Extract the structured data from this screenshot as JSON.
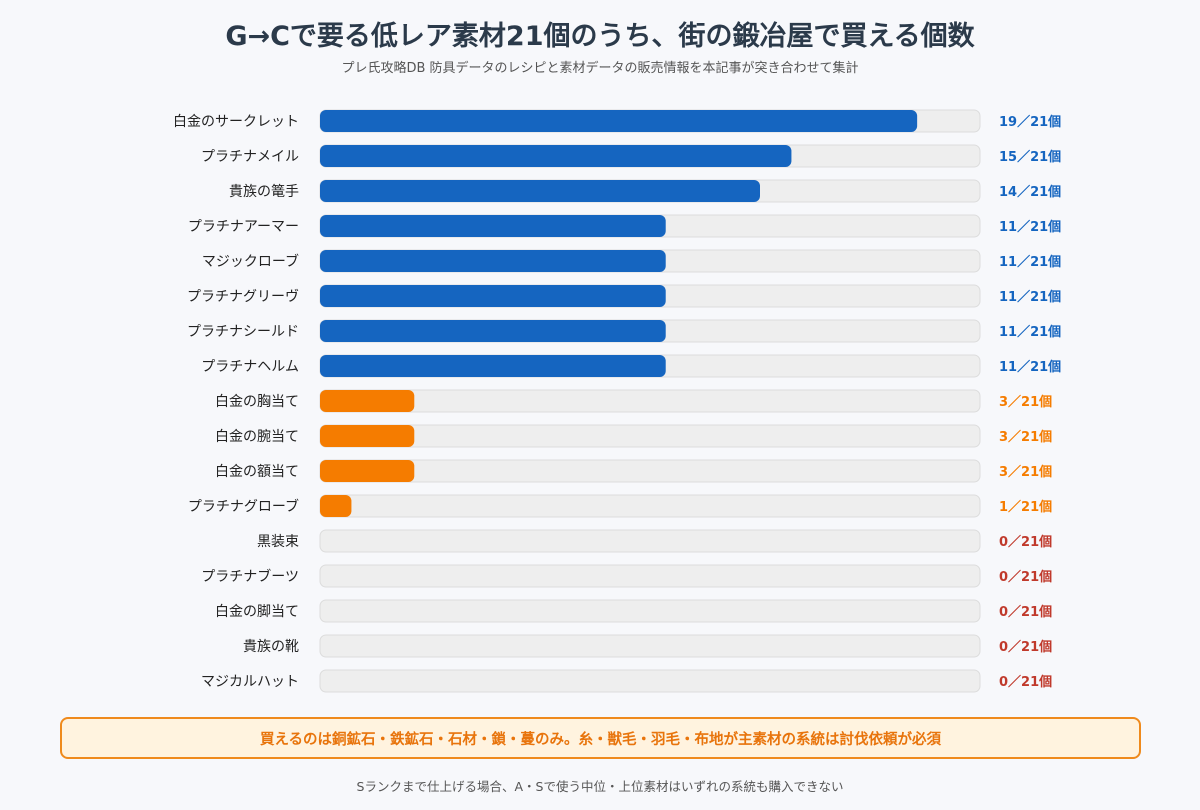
{
  "header": {
    "title": "G→Cで要る低レア素材21個のうち、街の鍛冶屋で買える個数",
    "subtitle": "プレ氏攻略DB 防具データのレシピと素材データの販売情報を本記事が突き合わせて集計"
  },
  "chart_data": {
    "type": "bar",
    "orientation": "horizontal",
    "max": 21,
    "unit_suffix": "／21個",
    "categories": [
      "白金のサークレット",
      "プラチナメイル",
      "貴族の篭手",
      "プラチナアーマー",
      "マジックローブ",
      "プラチナグリーヴ",
      "プラチナシールド",
      "プラチナヘルム",
      "白金の胸当て",
      "白金の腕当て",
      "白金の額当て",
      "プラチナグローブ",
      "黒装束",
      "プラチナブーツ",
      "白金の脚当て",
      "貴族の靴",
      "マジカルハット"
    ],
    "values": [
      19,
      15,
      14,
      11,
      11,
      11,
      11,
      11,
      3,
      3,
      3,
      1,
      0,
      0,
      0,
      0,
      0
    ],
    "value_labels": [
      "19／21個",
      "15／21個",
      "14／21個",
      "11／21個",
      "11／21個",
      "11／21個",
      "11／21個",
      "11／21個",
      "3／21個",
      "3／21個",
      "3／21個",
      "1／21個",
      "0／21個",
      "0／21個",
      "0／21個",
      "0／21個",
      "0／21個"
    ],
    "colors": {
      "high": "#1565c0",
      "low": "#f57c00",
      "zero_label": "#c0392b",
      "track": "#eeeeee",
      "track_border": "#dcdcdc"
    },
    "grid": false,
    "legend": "none"
  },
  "callout": {
    "text": "買えるのは銅鉱石・鉄鉱石・石材・鎖・蔓のみ。糸・獣毛・羽毛・布地が主素材の系統は討伐依頼が必須"
  },
  "footnote": {
    "text": "Sランクまで仕上げる場合、A・Sで使う中位・上位素材はいずれの系統も購入できない"
  }
}
